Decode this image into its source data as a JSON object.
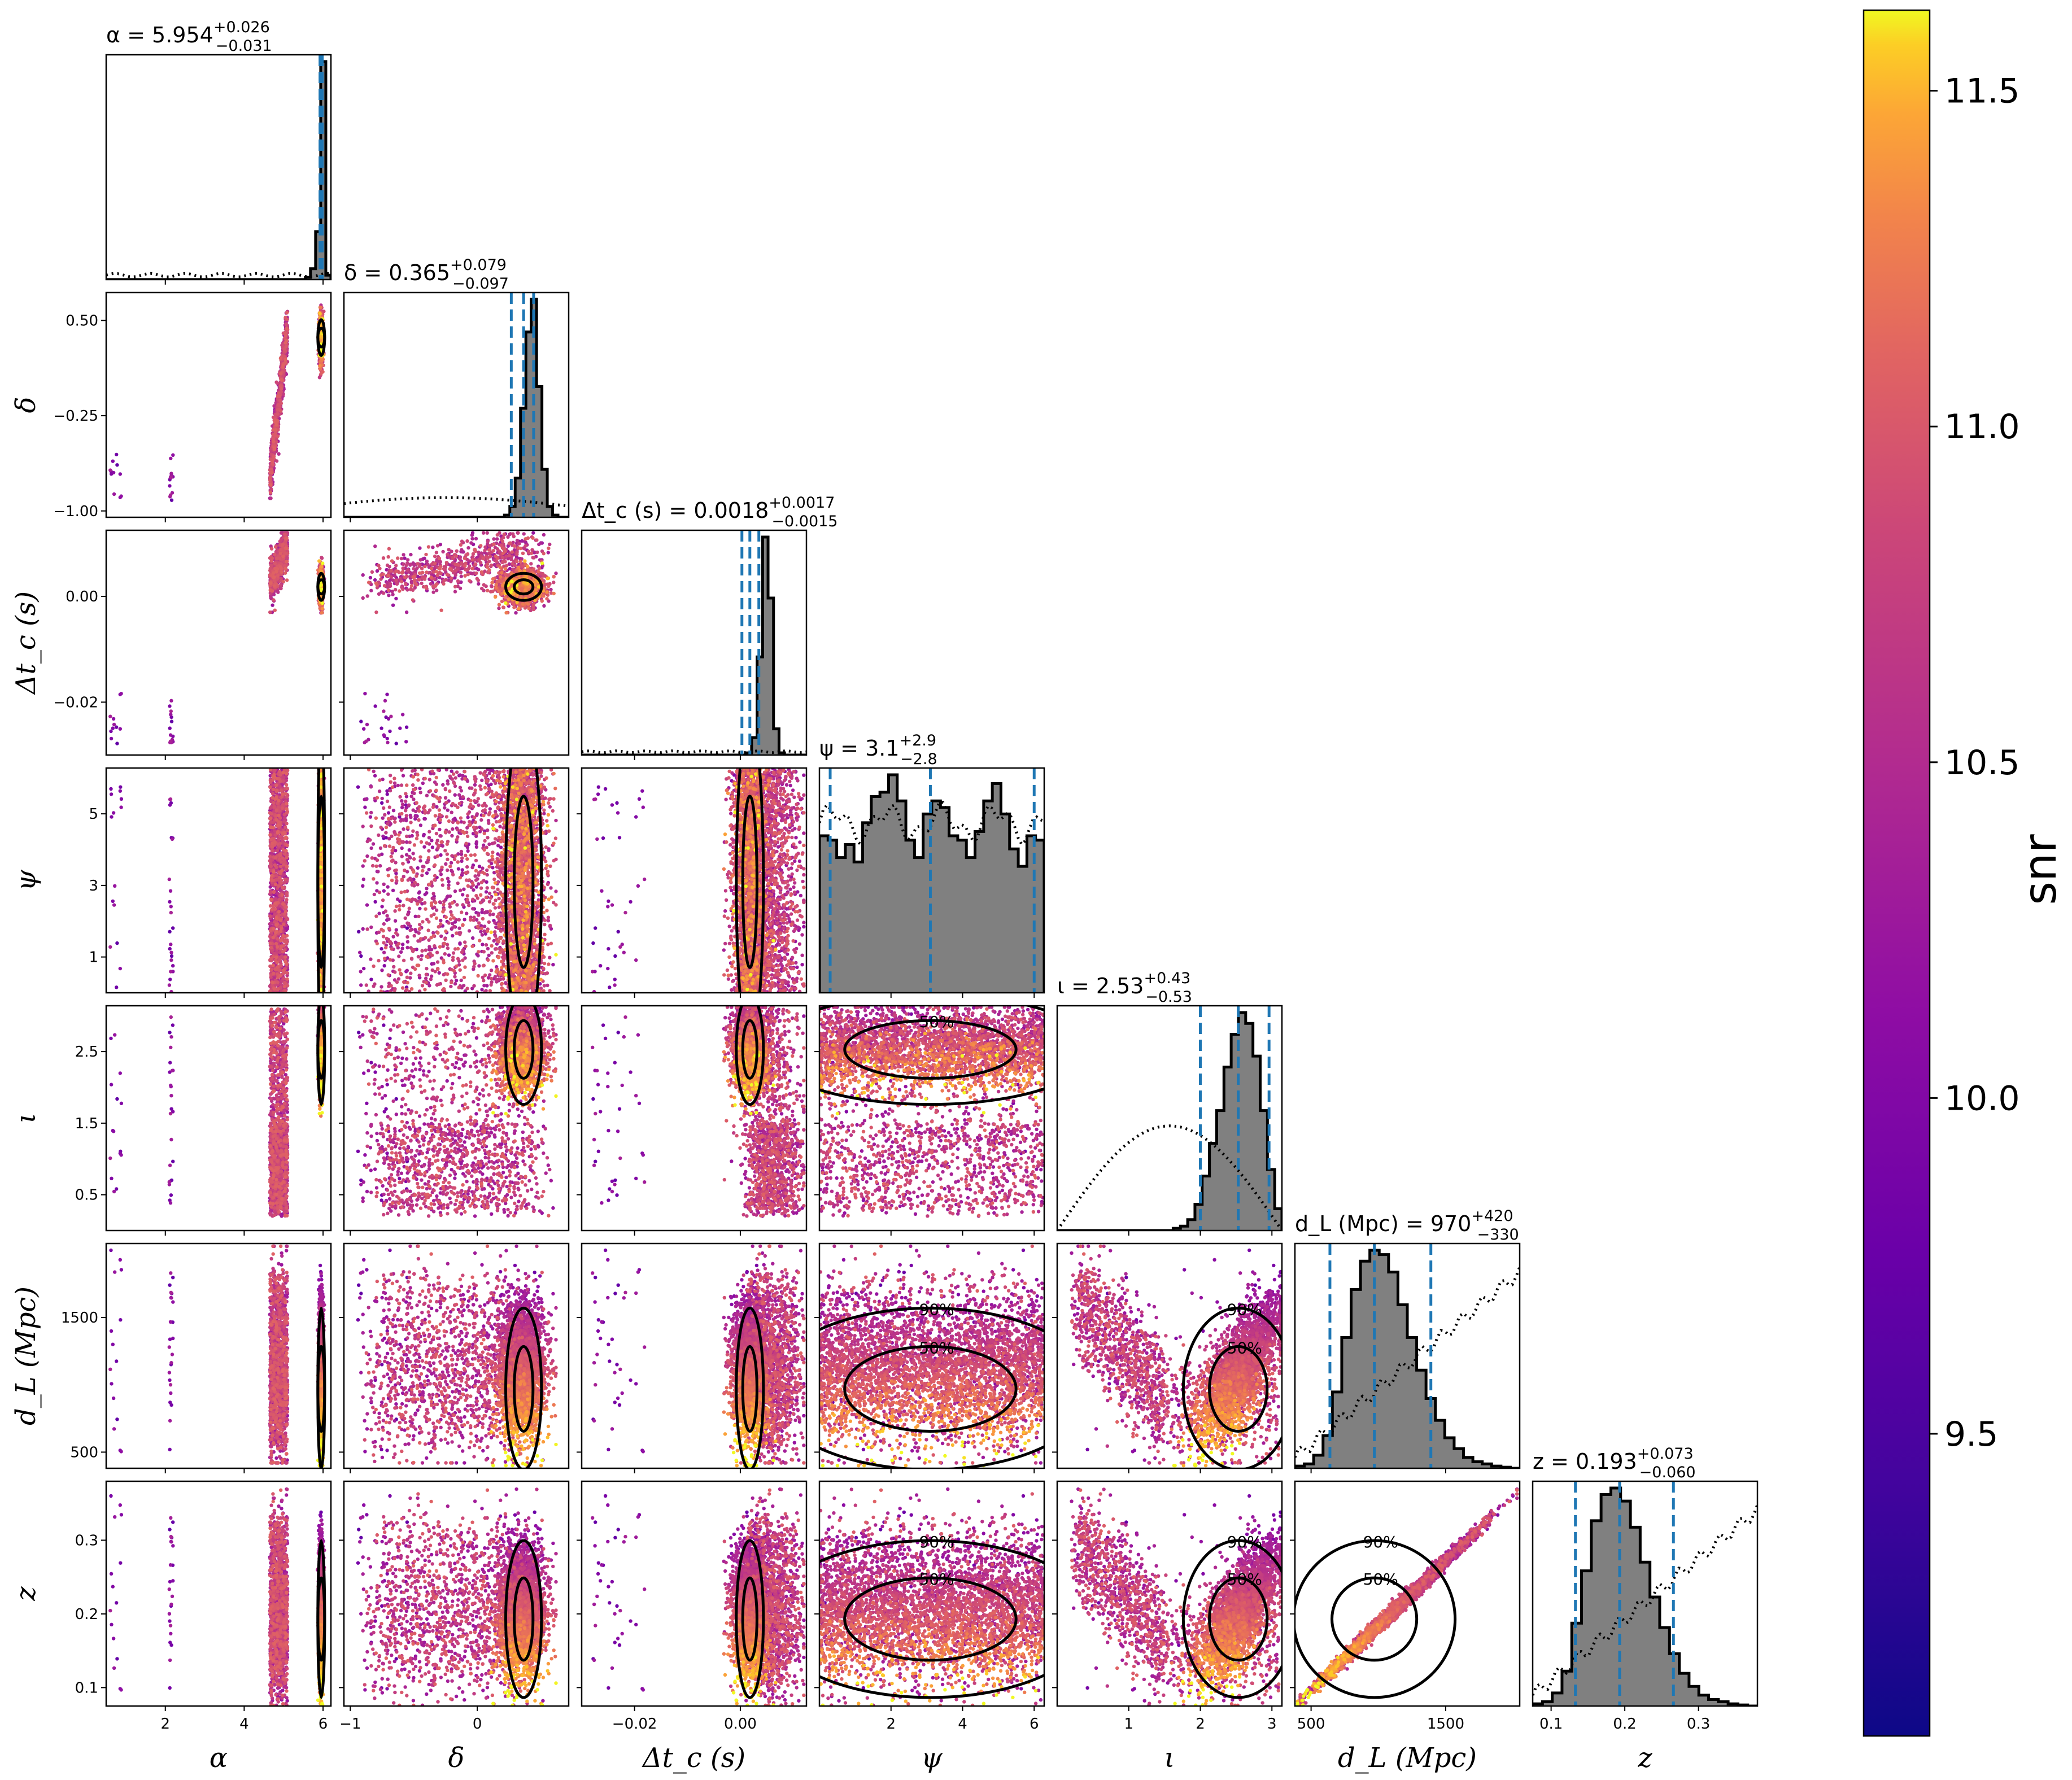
{
  "chart_data": {
    "type": "scatter",
    "kind": "corner-plot",
    "parameters": [
      {
        "key": "alpha",
        "label": "α",
        "range": [
          0.5,
          6.2
        ],
        "ticks": [
          2,
          4,
          6
        ],
        "title": "α = 5.954",
        "median": 5.954,
        "plus": "+0.026",
        "minus": "−0.031",
        "quantiles": [
          5.923,
          5.954,
          5.98
        ]
      },
      {
        "key": "delta",
        "label": "δ",
        "range": [
          -1.05,
          0.72
        ],
        "ticks": [
          -1.0,
          -0.25,
          0.5
        ],
        "xticks": [
          -1,
          0
        ],
        "ytick_labels": [
          "−1.00",
          "−0.25",
          "0.50"
        ],
        "title": "δ = 0.365",
        "median": 0.365,
        "plus": "+0.079",
        "minus": "−0.097",
        "quantiles": [
          0.268,
          0.365,
          0.444
        ]
      },
      {
        "key": "dtc",
        "label": "Δt_c (s)",
        "range": [
          -0.03,
          0.0125
        ],
        "ticks": [
          -0.02,
          0.0
        ],
        "ytick_labels": [
          "−0.02",
          "0.00"
        ],
        "xtick_labels": [
          "−0.02",
          "0.00"
        ],
        "title": "Δt_c (s) = 0.0018",
        "median": 0.0018,
        "plus": "+0.0017",
        "minus": "−0.0015",
        "quantiles": [
          0.0003,
          0.0018,
          0.0035
        ]
      },
      {
        "key": "psi",
        "label": "ψ",
        "range": [
          0,
          6.28
        ],
        "ticks": [
          1,
          3,
          5
        ],
        "xticks": [
          2,
          4,
          6
        ],
        "title": "ψ = 3.1",
        "median": 3.1,
        "plus": "+2.9",
        "minus": "−2.8",
        "quantiles": [
          0.3,
          3.1,
          6.0
        ]
      },
      {
        "key": "iota",
        "label": "ι",
        "range": [
          0,
          3.14
        ],
        "ticks": [
          0.5,
          1.5,
          2.5
        ],
        "xticks": [
          1,
          2,
          3
        ],
        "title": "ι = 2.53",
        "median": 2.53,
        "plus": "+0.43",
        "minus": "−0.53",
        "quantiles": [
          2.0,
          2.53,
          2.96
        ]
      },
      {
        "key": "dl",
        "label": "d_L (Mpc)",
        "range": [
          380,
          2050
        ],
        "ticks": [
          500,
          1500
        ],
        "title": "d_L (Mpc) = 970",
        "median": 970,
        "plus": "+420",
        "minus": "−330",
        "quantiles": [
          640,
          970,
          1390
        ]
      },
      {
        "key": "z",
        "label": "z",
        "range": [
          0.075,
          0.38
        ],
        "ticks": [
          0.1,
          0.2,
          0.3
        ],
        "title": "z = 0.193",
        "median": 0.193,
        "plus": "+0.073",
        "minus": "−0.060",
        "quantiles": [
          0.133,
          0.193,
          0.266
        ]
      }
    ],
    "histograms": {
      "alpha": {
        "posterior": [
          0,
          0,
          0,
          0,
          0,
          0,
          0,
          0,
          0,
          0,
          0,
          0,
          0,
          0,
          0,
          0,
          0,
          0,
          0,
          0,
          0,
          0,
          0,
          0,
          0,
          0,
          0,
          0,
          0,
          0,
          0,
          0,
          0,
          0,
          0,
          0,
          0,
          0,
          0,
          0.01,
          0.05,
          0.22,
          1.0,
          0.02
        ],
        "prior": "flat"
      },
      "delta": {
        "posterior": [
          0,
          0,
          0,
          0,
          0,
          0,
          0,
          0,
          0,
          0,
          0,
          0,
          0,
          0,
          0,
          0,
          0,
          0,
          0,
          0,
          0,
          0,
          0,
          0,
          0,
          0,
          0,
          0,
          0,
          0,
          0.01,
          0.05,
          0.18,
          0.5,
          0.85,
          1.0,
          0.6,
          0.22,
          0.05,
          0.01,
          0,
          0
        ],
        "prior": "cosine"
      },
      "dtc": {
        "posterior": [
          0,
          0,
          0,
          0,
          0,
          0,
          0,
          0,
          0,
          0,
          0,
          0,
          0,
          0,
          0,
          0,
          0,
          0,
          0,
          0,
          0,
          0,
          0,
          0,
          0,
          0,
          0,
          0,
          0,
          0,
          0.01,
          0.08,
          0.45,
          1.0,
          0.72,
          0.12,
          0.01,
          0,
          0,
          0,
          0
        ],
        "prior": "flat-low"
      },
      "psi": {
        "posterior": [
          0.72,
          0.7,
          0.62,
          0.68,
          0.6,
          0.78,
          0.9,
          0.92,
          1.0,
          0.88,
          0.7,
          0.62,
          0.82,
          0.88,
          0.85,
          0.72,
          0.7,
          0.62,
          0.74,
          0.88,
          0.96,
          0.82,
          0.66,
          0.58,
          0.72,
          0.7
        ],
        "prior": "flat-mid"
      },
      "iota": {
        "posterior": [
          0,
          0,
          0,
          0,
          0,
          0,
          0,
          0,
          0,
          0,
          0,
          0,
          0,
          0,
          0,
          0,
          0.01,
          0.02,
          0.05,
          0.12,
          0.25,
          0.4,
          0.55,
          0.75,
          0.9,
          1.0,
          0.95,
          0.8,
          0.55,
          0.28,
          0.1
        ],
        "prior": "sine"
      },
      "dl": {
        "posterior": [
          0.01,
          0.02,
          0.06,
          0.15,
          0.35,
          0.6,
          0.82,
          0.95,
          1.0,
          0.98,
          0.9,
          0.75,
          0.6,
          0.45,
          0.32,
          0.22,
          0.14,
          0.09,
          0.05,
          0.03,
          0.02,
          0.01,
          0.005,
          0.0
        ],
        "prior": "rising"
      },
      "z": {
        "posterior": [
          0.01,
          0.02,
          0.06,
          0.16,
          0.38,
          0.62,
          0.85,
          0.97,
          1.0,
          0.94,
          0.82,
          0.66,
          0.5,
          0.36,
          0.24,
          0.15,
          0.09,
          0.05,
          0.03,
          0.02,
          0.01,
          0.005,
          0.0
        ],
        "prior": "rising"
      }
    },
    "contour_levels": [
      "50%",
      "90%"
    ],
    "colorbar": {
      "label": "snr",
      "range": [
        9.05,
        11.62
      ],
      "ticks": [
        9.5,
        10.0,
        10.5,
        11.0,
        11.5
      ],
      "tick_labels": [
        "9.5",
        "10.0",
        "10.5",
        "11.0",
        "11.5"
      ],
      "colormap": "plasma"
    }
  }
}
